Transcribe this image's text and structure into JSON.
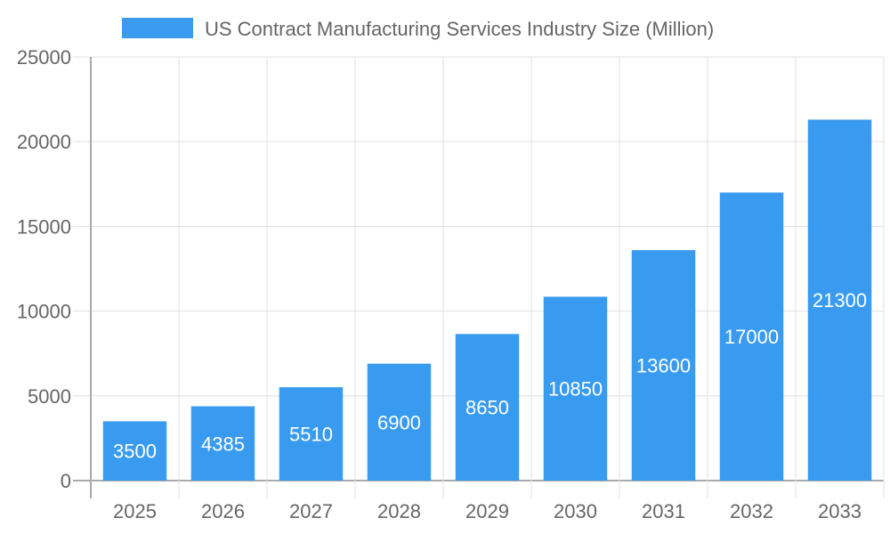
{
  "chart_data": {
    "type": "bar",
    "title": "",
    "xlabel": "",
    "ylabel": "",
    "categories": [
      "2025",
      "2026",
      "2027",
      "2028",
      "2029",
      "2030",
      "2031",
      "2032",
      "2033"
    ],
    "series": [
      {
        "name": "US Contract Manufacturing Services Industry Size (Million)",
        "values": [
          3500,
          4385,
          5510,
          6900,
          8650,
          10850,
          13600,
          17000,
          21300
        ]
      }
    ],
    "ylim": [
      0,
      25000
    ],
    "yticks": [
      0,
      5000,
      10000,
      15000,
      20000,
      25000
    ],
    "grid": true,
    "legend": "top",
    "data_labels": true,
    "colors": {
      "bar": "#399bef",
      "grid": "#e0e0e0",
      "axis": "#aaaaaa",
      "text": "#666666",
      "label": "#ffffff"
    }
  }
}
